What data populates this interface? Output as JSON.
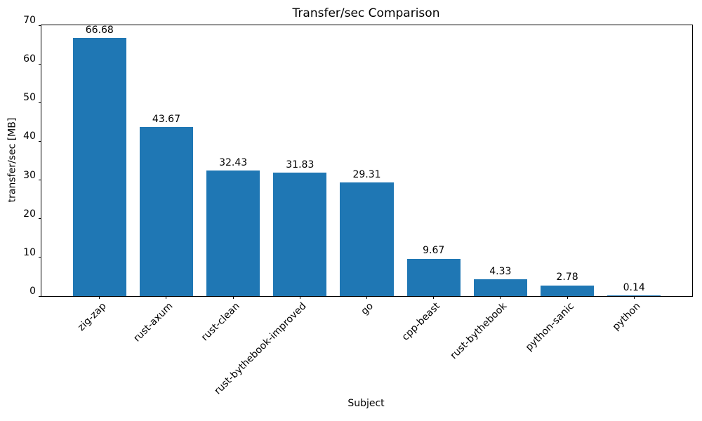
{
  "chart_data": {
    "type": "bar",
    "title": "Transfer/sec Comparison",
    "xlabel": "Subject",
    "ylabel": "transfer/sec [MB]",
    "categories": [
      "zig-zap",
      "rust-axum",
      "rust-clean",
      "rust-bythebook-improved",
      "go",
      "cpp-beast",
      "rust-bythebook",
      "python-sanic",
      "python"
    ],
    "values": [
      66.68,
      43.67,
      32.43,
      31.83,
      29.31,
      9.67,
      4.33,
      2.78,
      0.14
    ],
    "value_labels": [
      "66.68",
      "43.67",
      "32.43",
      "31.83",
      "29.31",
      "9.67",
      "4.33",
      "2.78",
      "0.14"
    ],
    "ylim": [
      0,
      70
    ],
    "yticks": [
      0,
      10,
      20,
      30,
      40,
      50,
      60,
      70
    ],
    "xtick_rotation_deg": 45,
    "bar_color": "#1f77b4",
    "axis_color": "#000000",
    "grid": false,
    "legend": null
  }
}
